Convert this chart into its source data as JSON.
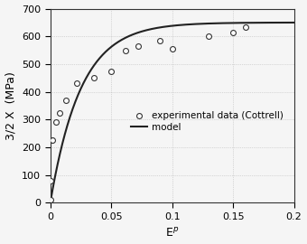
{
  "exp_x": [
    0.0,
    0.0,
    0.001,
    0.002,
    0.005,
    0.008,
    0.013,
    0.022,
    0.036,
    0.05,
    0.062,
    0.072,
    0.09,
    0.1,
    0.13,
    0.15,
    0.16
  ],
  "exp_y": [
    10.0,
    80.0,
    225.0,
    225.0,
    290.0,
    325.0,
    370.0,
    430.0,
    450.0,
    475.0,
    550.0,
    565.0,
    585.0,
    555.0,
    600.0,
    615.0,
    635.0
  ],
  "model_C": 650.0,
  "model_gamma": 40.0,
  "xlabel": "E$^{p}$",
  "ylabel": "3/2 X  (MPa)",
  "xlim": [
    0.0,
    0.2
  ],
  "ylim": [
    0.0,
    700.0
  ],
  "xticks": [
    0.0,
    0.05,
    0.1,
    0.15,
    0.2
  ],
  "xtick_labels": [
    "0",
    "0.05",
    "0.1",
    "0.15",
    "0.2"
  ],
  "yticks": [
    0,
    100,
    200,
    300,
    400,
    500,
    600,
    700
  ],
  "ytick_labels": [
    "0",
    "100",
    "200",
    "300",
    "400",
    "500",
    "600",
    "700"
  ],
  "legend_exp": "experimental data (Cottrell)",
  "legend_model": "model",
  "marker_color": "#333333",
  "marker_face": "white",
  "line_color": "#222222",
  "background_color": "#f5f5f5",
  "grid_color": "#aaaaaa"
}
